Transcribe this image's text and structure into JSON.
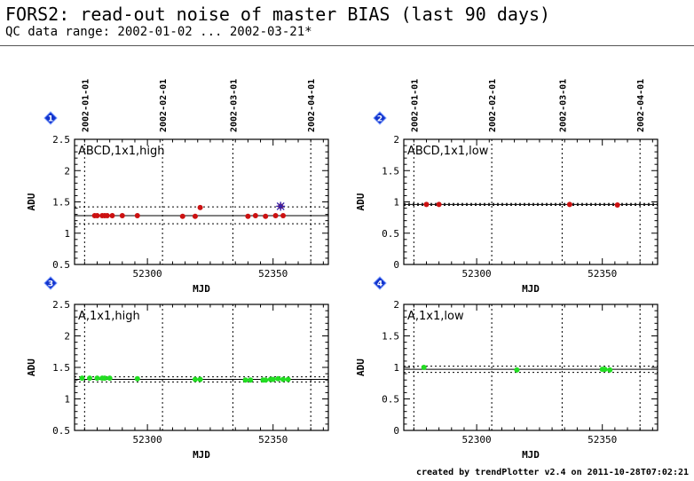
{
  "header": {
    "title": "FORS2: read-out noise of master BIAS (last 90 days)",
    "subtitle": "QC data range: 2002-01-02 ... 2002-03-21*"
  },
  "footer": {
    "credit": "created by trendPlotter v2.4 on 2011-10-28T07:02:21"
  },
  "colors": {
    "red_series": "#cc1111",
    "green_series": "#22dd22",
    "outlier": "#3322aa",
    "badge": "#1133cc"
  },
  "chart_data": [
    {
      "type": "scatter",
      "panel_number": "1",
      "label": "ABCD,1x1,high",
      "xlabel": "MJD",
      "ylabel": "ADU",
      "xlim": [
        52271,
        52372
      ],
      "ylim": [
        0.5,
        2.5
      ],
      "yticks": [
        0.5,
        1,
        1.5,
        2,
        2.5
      ],
      "ytick_labels": [
        "0.5",
        "1",
        "1.5",
        "2",
        "2.5"
      ],
      "xticks": [
        52300,
        52350
      ],
      "xtick_labels": [
        "52300",
        "52350"
      ],
      "top_dates": [
        {
          "mjd": 52275,
          "label": "2002-01-01"
        },
        {
          "mjd": 52306,
          "label": "2002-02-01"
        },
        {
          "mjd": 52334,
          "label": "2002-03-01"
        },
        {
          "mjd": 52365,
          "label": "2002-04-01"
        }
      ],
      "color": "#cc1111",
      "mean_line": 1.28,
      "band": [
        1.15,
        1.42
      ],
      "points": [
        [
          52279,
          1.28
        ],
        [
          52280,
          1.28
        ],
        [
          52282,
          1.28
        ],
        [
          52283,
          1.28
        ],
        [
          52284,
          1.28
        ],
        [
          52286,
          1.28
        ],
        [
          52290,
          1.28
        ],
        [
          52296,
          1.28
        ],
        [
          52314,
          1.27
        ],
        [
          52319,
          1.27
        ],
        [
          52321,
          1.41
        ],
        [
          52340,
          1.27
        ],
        [
          52343,
          1.28
        ],
        [
          52347,
          1.27
        ],
        [
          52351,
          1.28
        ],
        [
          52354,
          1.28
        ]
      ],
      "outliers": [
        [
          52353,
          1.43
        ]
      ]
    },
    {
      "type": "scatter",
      "panel_number": "2",
      "label": "ABCD,1x1,low",
      "xlabel": "MJD",
      "ylabel": "ADU",
      "xlim": [
        52271,
        52372
      ],
      "ylim": [
        0,
        2
      ],
      "yticks": [
        0,
        0.5,
        1,
        1.5,
        2
      ],
      "ytick_labels": [
        "0",
        "0.5",
        "1",
        "1.5",
        "2"
      ],
      "xticks": [
        52300,
        52350
      ],
      "xtick_labels": [
        "52300",
        "52350"
      ],
      "top_dates": [
        {
          "mjd": 52275,
          "label": "2002-01-01"
        },
        {
          "mjd": 52306,
          "label": "2002-02-01"
        },
        {
          "mjd": 52334,
          "label": "2002-03-01"
        },
        {
          "mjd": 52365,
          "label": "2002-04-01"
        }
      ],
      "color": "#cc1111",
      "mean_line": 0.96,
      "band": [
        0.945,
        0.975
      ],
      "points": [
        [
          52280,
          0.96
        ],
        [
          52285,
          0.96
        ],
        [
          52337,
          0.96
        ],
        [
          52356,
          0.95
        ]
      ],
      "outliers": []
    },
    {
      "type": "scatter",
      "panel_number": "3",
      "label": "A,1x1,high",
      "xlabel": "MJD",
      "ylabel": "ADU",
      "xlim": [
        52271,
        52372
      ],
      "ylim": [
        0.5,
        2.5
      ],
      "yticks": [
        0.5,
        1,
        1.5,
        2,
        2.5
      ],
      "ytick_labels": [
        "0.5",
        "1",
        "1.5",
        "2",
        "2.5"
      ],
      "xticks": [
        52300,
        52350
      ],
      "xtick_labels": [
        "52300",
        "52350"
      ],
      "top_dates": [],
      "color": "#22dd22",
      "mean_line": 1.31,
      "band": [
        1.27,
        1.35
      ],
      "points": [
        [
          52274,
          1.33
        ],
        [
          52277,
          1.33
        ],
        [
          52280,
          1.33
        ],
        [
          52282,
          1.33
        ],
        [
          52283,
          1.33
        ],
        [
          52285,
          1.33
        ],
        [
          52296,
          1.32
        ],
        [
          52319,
          1.31
        ],
        [
          52321,
          1.31
        ],
        [
          52339,
          1.3
        ],
        [
          52341,
          1.3
        ],
        [
          52346,
          1.3
        ],
        [
          52347,
          1.3
        ],
        [
          52349,
          1.31
        ],
        [
          52350,
          1.31
        ],
        [
          52352,
          1.32
        ],
        [
          52354,
          1.31
        ],
        [
          52356,
          1.31
        ]
      ],
      "outliers": []
    },
    {
      "type": "scatter",
      "panel_number": "4",
      "label": "A,1x1,low",
      "xlabel": "MJD",
      "ylabel": "ADU",
      "xlim": [
        52271,
        52372
      ],
      "ylim": [
        0,
        2
      ],
      "yticks": [
        0,
        0.5,
        1,
        1.5,
        2
      ],
      "ytick_labels": [
        "0",
        "0.5",
        "1",
        "1.5",
        "2"
      ],
      "xticks": [
        52300,
        52350
      ],
      "xtick_labels": [
        "52300",
        "52350"
      ],
      "top_dates": [],
      "color": "#22dd22",
      "mean_line": 0.97,
      "band": [
        0.92,
        1.02
      ],
      "points": [
        [
          52279,
          1.0
        ],
        [
          52316,
          0.96
        ],
        [
          52350,
          0.97
        ],
        [
          52351,
          0.97
        ],
        [
          52353,
          0.96
        ]
      ],
      "outliers": []
    }
  ]
}
